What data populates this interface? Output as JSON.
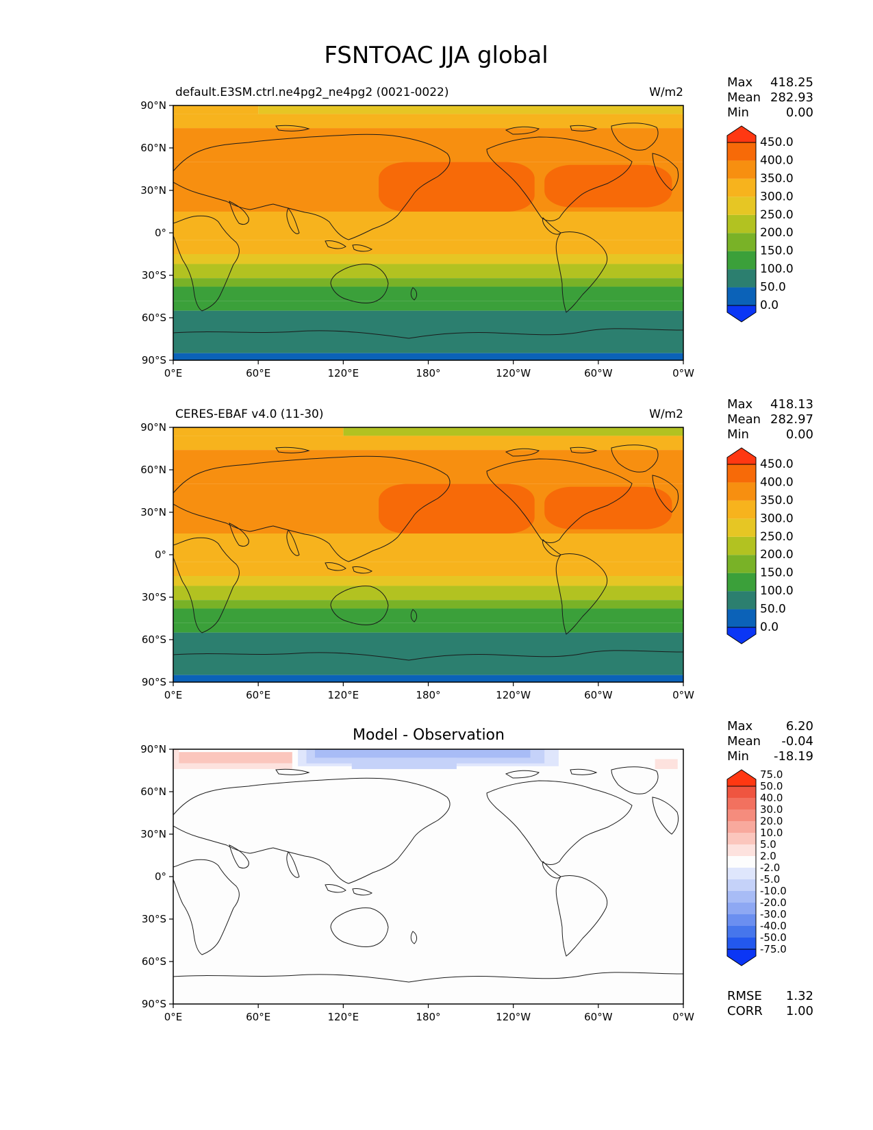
{
  "title": "FSNTOAC JJA global",
  "colors": {
    "field": [
      "#0b36f5",
      "#0b62b8",
      "#2c7f6f",
      "#3ba03a",
      "#79b227",
      "#b2c221",
      "#e6c624",
      "#f7b31d",
      "#f78f10",
      "#f76a08",
      "#ff3812"
    ],
    "diff": [
      "#0b36f5",
      "#2358ee",
      "#4676ec",
      "#6b8ff0",
      "#8ea8f3",
      "#a8bcf6",
      "#c5d2f9",
      "#dfe6fc",
      "#fdfdfd",
      "#fde2de",
      "#fbc6bd",
      "#f8a99d",
      "#f58c7d",
      "#f2715f",
      "#ef5540",
      "#ff3812"
    ]
  },
  "ticks": {
    "x": [
      "0°E",
      "60°E",
      "120°E",
      "180°",
      "120°W",
      "60°W",
      "0°W"
    ],
    "y": [
      "90°N",
      "60°N",
      "30°N",
      "0°",
      "30°S",
      "60°S",
      "90°S"
    ]
  },
  "chart_data": [
    {
      "type": "heatmap",
      "panel": "model",
      "title_left": "default.E3SM.ctrl.ne4pg2_ne4pg2 (0021-0022)",
      "units": "W/m2",
      "stats": [
        {
          "label": "Max",
          "value": "418.25"
        },
        {
          "label": "Mean",
          "value": "282.93"
        },
        {
          "label": "Min",
          "value": "0.00"
        }
      ],
      "levels": [
        "0.0",
        "50.0",
        "100.0",
        "150.0",
        "200.0",
        "250.0",
        "300.0",
        "350.0",
        "400.0",
        "450.0"
      ],
      "levels_numeric": [
        0,
        50,
        100,
        150,
        200,
        250,
        300,
        350,
        400,
        450
      ],
      "xlim": [
        0,
        360
      ],
      "ylim": [
        -90,
        90
      ],
      "zonal_profile": [
        {
          "lat": 90,
          "value": 230
        },
        {
          "lat": 80,
          "value": 290
        },
        {
          "lat": 70,
          "value": 330
        },
        {
          "lat": 60,
          "value": 350
        },
        {
          "lat": 45,
          "value": 370
        },
        {
          "lat": 35,
          "value": 395
        },
        {
          "lat": 25,
          "value": 395
        },
        {
          "lat": 10,
          "value": 340
        },
        {
          "lat": 0,
          "value": 320
        },
        {
          "lat": -8,
          "value": 300
        },
        {
          "lat": -18,
          "value": 265
        },
        {
          "lat": -28,
          "value": 215
        },
        {
          "lat": -35,
          "value": 180
        },
        {
          "lat": -42,
          "value": 140
        },
        {
          "lat": -50,
          "value": 100
        },
        {
          "lat": -56,
          "value": 60
        },
        {
          "lat": -66,
          "value": 40
        },
        {
          "lat": -80,
          "value": 20
        },
        {
          "lat": -90,
          "value": 0
        }
      ],
      "bands": [
        {
          "lat_top": 90,
          "lat_bottom": 84,
          "value": 250,
          "lon_from": 60,
          "lon_to": 360
        },
        {
          "lat_top": 90,
          "lat_bottom": 84,
          "value": 300,
          "lon_from": 0,
          "lon_to": 60
        },
        {
          "lat_top": 84,
          "lat_bottom": 74,
          "value": 320
        },
        {
          "lat_top": 74,
          "lat_bottom": 50,
          "value": 360
        },
        {
          "lat_top": 50,
          "lat_bottom": 15,
          "value": 360
        },
        {
          "lat_top": 15,
          "lat_bottom": -5,
          "value": 340
        },
        {
          "lat_top": -5,
          "lat_bottom": -15,
          "value": 320
        },
        {
          "lat_top": -15,
          "lat_bottom": -22,
          "value": 280
        },
        {
          "lat_top": -22,
          "lat_bottom": -32,
          "value": 230
        },
        {
          "lat_top": -32,
          "lat_bottom": -38,
          "value": 190
        },
        {
          "lat_top": -38,
          "lat_bottom": -48,
          "value": 140
        },
        {
          "lat_top": -48,
          "lat_bottom": -55,
          "value": 110
        },
        {
          "lat_top": -55,
          "lat_bottom": -85,
          "value": 60
        },
        {
          "lat_top": -85,
          "lat_bottom": -90,
          "value": 20
        }
      ],
      "patches": [
        {
          "lon_from": 145,
          "lon_to": 255,
          "lat_top": 50,
          "lat_bottom": 15,
          "value": 410
        },
        {
          "lon_from": 262,
          "lon_to": 352,
          "lat_top": 48,
          "lat_bottom": 18,
          "value": 410
        }
      ]
    },
    {
      "type": "heatmap",
      "panel": "observation",
      "title_left": "CERES-EBAF v4.0 (11-30)",
      "units": "W/m2",
      "stats": [
        {
          "label": "Max",
          "value": "418.13"
        },
        {
          "label": "Mean",
          "value": "282.97"
        },
        {
          "label": "Min",
          "value": "0.00"
        }
      ],
      "levels": [
        "0.0",
        "50.0",
        "100.0",
        "150.0",
        "200.0",
        "250.0",
        "300.0",
        "350.0",
        "400.0",
        "450.0"
      ],
      "levels_numeric": [
        0,
        50,
        100,
        150,
        200,
        250,
        300,
        350,
        400,
        450
      ],
      "xlim": [
        0,
        360
      ],
      "ylim": [
        -90,
        90
      ],
      "bands": [
        {
          "lat_top": 90,
          "lat_bottom": 84,
          "value": 230,
          "lon_from": 120,
          "lon_to": 360
        },
        {
          "lat_top": 90,
          "lat_bottom": 84,
          "value": 300,
          "lon_from": 0,
          "lon_to": 120
        },
        {
          "lat_top": 84,
          "lat_bottom": 74,
          "value": 320
        },
        {
          "lat_top": 74,
          "lat_bottom": 50,
          "value": 360
        },
        {
          "lat_top": 50,
          "lat_bottom": 15,
          "value": 360
        },
        {
          "lat_top": 15,
          "lat_bottom": -5,
          "value": 340
        },
        {
          "lat_top": -5,
          "lat_bottom": -15,
          "value": 320
        },
        {
          "lat_top": -15,
          "lat_bottom": -22,
          "value": 280
        },
        {
          "lat_top": -22,
          "lat_bottom": -32,
          "value": 230
        },
        {
          "lat_top": -32,
          "lat_bottom": -38,
          "value": 190
        },
        {
          "lat_top": -38,
          "lat_bottom": -48,
          "value": 140
        },
        {
          "lat_top": -48,
          "lat_bottom": -55,
          "value": 110
        },
        {
          "lat_top": -55,
          "lat_bottom": -85,
          "value": 60
        },
        {
          "lat_top": -85,
          "lat_bottom": -90,
          "value": 20
        }
      ],
      "patches": [
        {
          "lon_from": 145,
          "lon_to": 255,
          "lat_top": 50,
          "lat_bottom": 15,
          "value": 410
        },
        {
          "lon_from": 262,
          "lon_to": 352,
          "lat_top": 48,
          "lat_bottom": 18,
          "value": 410
        }
      ]
    },
    {
      "type": "heatmap",
      "panel": "difference",
      "title_center": "Model - Observation",
      "stats": [
        {
          "label": "Max",
          "value": "6.20"
        },
        {
          "label": "Mean",
          "value": "-0.04"
        },
        {
          "label": "Min",
          "value": "-18.19"
        }
      ],
      "metrics": [
        {
          "label": "RMSE",
          "value": "1.32"
        },
        {
          "label": "CORR",
          "value": "1.00"
        }
      ],
      "levels": [
        "-75.0",
        "-50.0",
        "-40.0",
        "-30.0",
        "-20.0",
        "-10.0",
        "-5.0",
        "-2.0",
        "2.0",
        "5.0",
        "10.0",
        "20.0",
        "30.0",
        "40.0",
        "50.0",
        "75.0"
      ],
      "levels_numeric": [
        -75,
        -50,
        -40,
        -30,
        -20,
        -10,
        -5,
        -2,
        2,
        5,
        10,
        20,
        30,
        40,
        50,
        75
      ],
      "xlim": [
        0,
        360
      ],
      "ylim": [
        -90,
        90
      ],
      "patches": [
        {
          "lon_from": 0,
          "lon_to": 4,
          "lat_top": 90,
          "lat_bottom": 76,
          "value": 3
        },
        {
          "lon_from": 4,
          "lon_to": 84,
          "lat_top": 88,
          "lat_bottom": 80,
          "value": 6
        },
        {
          "lon_from": 4,
          "lon_to": 84,
          "lat_top": 80,
          "lat_bottom": 76,
          "value": 3
        },
        {
          "lon_from": 88,
          "lon_to": 272,
          "lat_top": 90,
          "lat_bottom": 78,
          "value": -3
        },
        {
          "lon_from": 94,
          "lon_to": 262,
          "lat_top": 90,
          "lat_bottom": 80,
          "value": -7
        },
        {
          "lon_from": 100,
          "lon_to": 252,
          "lat_top": 90,
          "lat_bottom": 84,
          "value": -12
        },
        {
          "lon_from": 126,
          "lon_to": 200,
          "lat_top": 84,
          "lat_bottom": 76,
          "value": -7
        },
        {
          "lon_from": 340,
          "lon_to": 356,
          "lat_top": 83,
          "lat_bottom": 76,
          "value": 3
        }
      ]
    }
  ]
}
